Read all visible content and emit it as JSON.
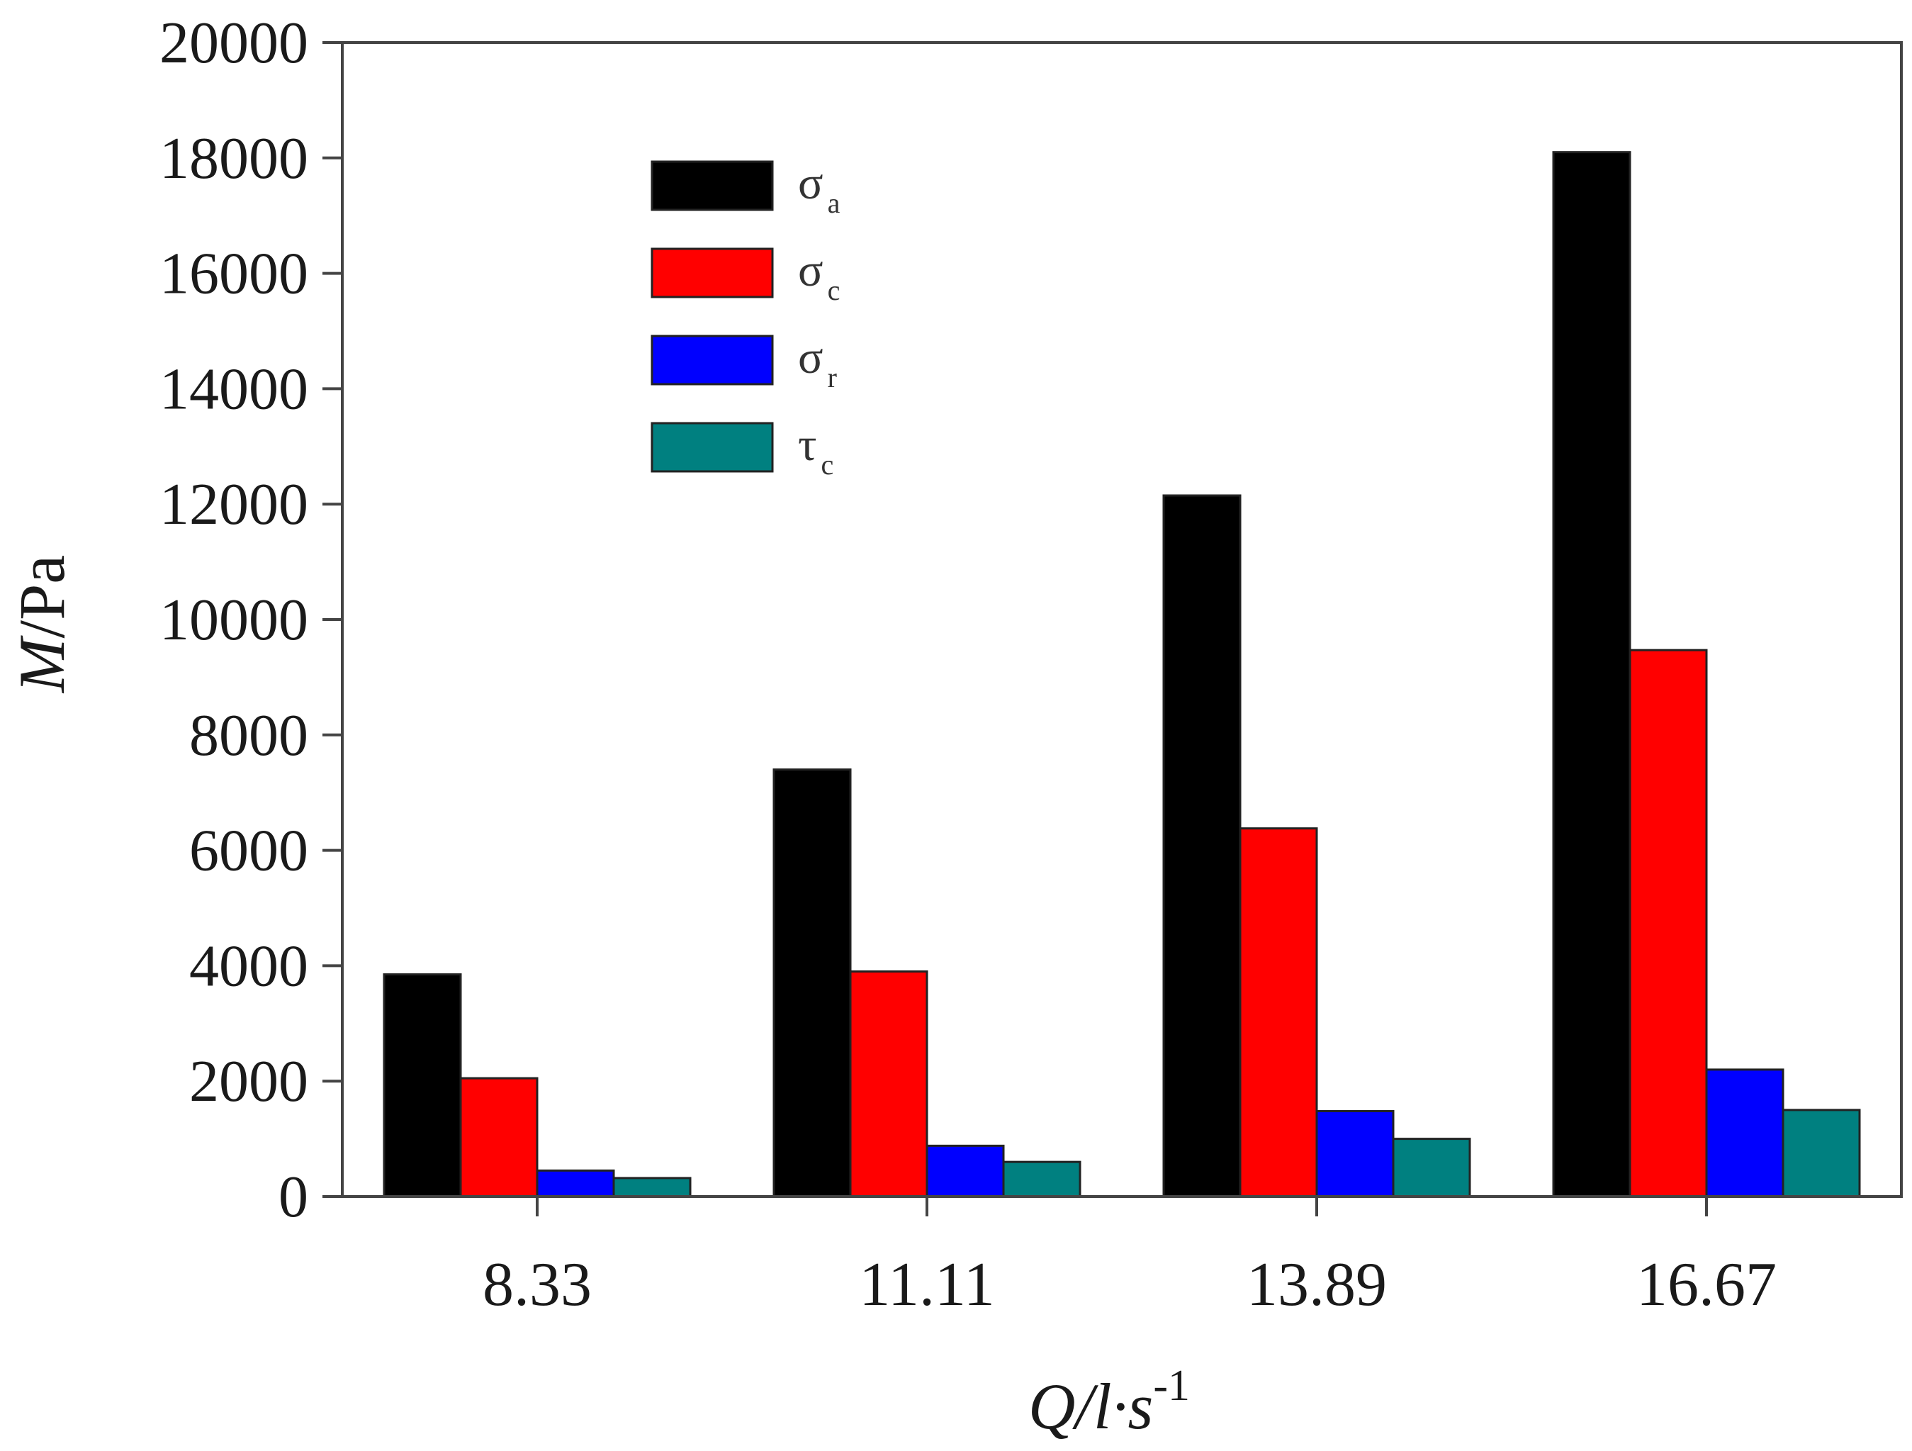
{
  "chart_data": {
    "type": "bar",
    "title": "",
    "categories": [
      "8.33",
      "11.11",
      "13.89",
      "16.67"
    ],
    "xlabel": {
      "main": "Q/l·s",
      "superscript": "-1"
    },
    "ylabel": "M/Pa",
    "ylim": [
      0,
      20000
    ],
    "yticks": [
      0,
      2000,
      4000,
      6000,
      8000,
      10000,
      12000,
      14000,
      16000,
      18000,
      20000
    ],
    "grid": false,
    "legend_position": "top-left",
    "series": [
      {
        "name": "σa",
        "symbol": "σ",
        "subscript": "a",
        "color": "#000000",
        "values": [
          3850,
          7400,
          12150,
          18100
        ]
      },
      {
        "name": "σc",
        "symbol": "σ",
        "subscript": "c",
        "color": "#ff0000",
        "values": [
          2050,
          3900,
          6380,
          9470
        ]
      },
      {
        "name": "σr",
        "symbol": "σ",
        "subscript": "r",
        "color": "#0000ff",
        "values": [
          450,
          880,
          1480,
          2200
        ]
      },
      {
        "name": "τc",
        "symbol": "τ",
        "subscript": "c",
        "color": "#008080",
        "values": [
          320,
          600,
          1000,
          1500
        ]
      }
    ]
  }
}
